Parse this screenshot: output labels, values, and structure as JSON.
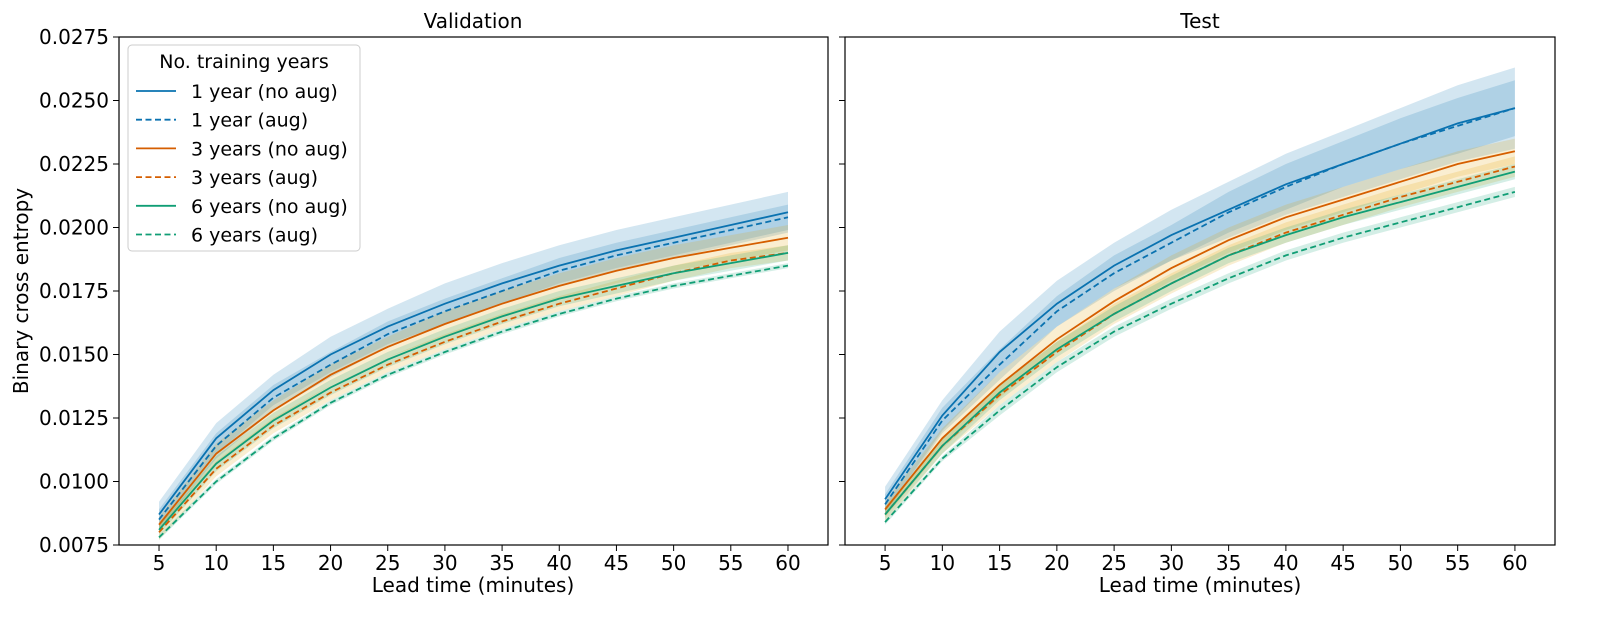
{
  "ylabel": "Binary cross entropy",
  "legend": {
    "title": "No. training years",
    "placement": "upper left (Validation panel)"
  },
  "colors": {
    "blue": "#0a72b0",
    "orange": "#d55e00",
    "green": "#109e75",
    "blue_band": "#0a72b0",
    "orange_band": "#e69f00"
  },
  "chart_data": [
    {
      "type": "line",
      "title": "Validation",
      "xlabel": "Lead time (minutes)",
      "ylabel": "Binary cross entropy",
      "xlim": [
        1.5,
        63.5
      ],
      "ylim": [
        0.0075,
        0.0275
      ],
      "x": [
        5,
        10,
        15,
        20,
        25,
        30,
        35,
        40,
        45,
        50,
        55,
        60
      ],
      "yticks": [
        "0.0075",
        "0.0100",
        "0.0125",
        "0.0150",
        "0.0175",
        "0.0200",
        "0.0225",
        "0.0250",
        "0.0275"
      ],
      "grid": false,
      "series": [
        {
          "name": "1 year (no aug)",
          "color": "blue",
          "dash": false,
          "values": [
            0.0087,
            0.0117,
            0.0136,
            0.015,
            0.0161,
            0.017,
            0.0178,
            0.0185,
            0.0191,
            0.0196,
            0.0201,
            0.0206
          ],
          "band": [
            0.0005,
            0.0006,
            0.0006,
            0.0007,
            0.0007,
            0.0008,
            0.0008,
            0.0008,
            0.0008,
            0.0008,
            0.0008,
            0.0008
          ]
        },
        {
          "name": "1 year (aug)",
          "color": "blue",
          "dash": true,
          "values": [
            0.0085,
            0.0114,
            0.0133,
            0.0146,
            0.0158,
            0.0167,
            0.0175,
            0.0183,
            0.0189,
            0.0194,
            0.0199,
            0.0204
          ],
          "band": [
            0.0004,
            0.0005,
            0.0005,
            0.0005,
            0.0005,
            0.0005,
            0.0005,
            0.0005,
            0.0005,
            0.0005,
            0.0005,
            0.0005
          ]
        },
        {
          "name": "3 years (no aug)",
          "color": "orange",
          "dash": false,
          "values": [
            0.0083,
            0.0111,
            0.0128,
            0.0142,
            0.0153,
            0.0162,
            0.017,
            0.0177,
            0.0183,
            0.0188,
            0.0192,
            0.0196
          ],
          "band": [
            0.0003,
            0.0004,
            0.0004,
            0.0004,
            0.0004,
            0.0005,
            0.0005,
            0.0005,
            0.0005,
            0.0005,
            0.0005,
            0.0005
          ]
        },
        {
          "name": "3 years (aug)",
          "color": "orange",
          "dash": true,
          "values": [
            0.008,
            0.0105,
            0.0122,
            0.0135,
            0.0146,
            0.0155,
            0.0163,
            0.017,
            0.0176,
            0.0182,
            0.0187,
            0.019
          ],
          "band": [
            0.0003,
            0.0003,
            0.0003,
            0.0003,
            0.0003,
            0.0003,
            0.0003,
            0.0003,
            0.0003,
            0.0003,
            0.0003,
            0.0003
          ]
        },
        {
          "name": "6 years (no aug)",
          "color": "green",
          "dash": false,
          "values": [
            0.0081,
            0.0107,
            0.0124,
            0.0137,
            0.0148,
            0.0157,
            0.0165,
            0.0172,
            0.0177,
            0.0182,
            0.0186,
            0.019
          ],
          "band": [
            0.0002,
            0.0003,
            0.0003,
            0.0003,
            0.0003,
            0.0003,
            0.0003,
            0.0003,
            0.0003,
            0.0003,
            0.0003,
            0.0003
          ]
        },
        {
          "name": "6 years (aug)",
          "color": "green",
          "dash": true,
          "values": [
            0.0078,
            0.01,
            0.0117,
            0.0131,
            0.0142,
            0.0151,
            0.0159,
            0.0166,
            0.0172,
            0.0177,
            0.0181,
            0.0185
          ],
          "band": [
            0.0001,
            0.0001,
            0.0001,
            0.0001,
            0.0001,
            0.0001,
            0.0001,
            0.0001,
            0.0001,
            0.0001,
            0.0001,
            0.0001
          ]
        }
      ]
    },
    {
      "type": "line",
      "title": "Test",
      "xlabel": "Lead time (minutes)",
      "ylabel": "",
      "xlim": [
        1.5,
        63.5
      ],
      "ylim": [
        0.0075,
        0.0275
      ],
      "x": [
        5,
        10,
        15,
        20,
        25,
        30,
        35,
        40,
        45,
        50,
        55,
        60
      ],
      "yticks": [
        "0.0075",
        "0.0100",
        "0.0125",
        "0.0150",
        "0.0175",
        "0.0200",
        "0.0225",
        "0.0250",
        "0.0275"
      ],
      "grid": false,
      "series": [
        {
          "name": "1 year (no aug)",
          "color": "blue",
          "dash": false,
          "values": [
            0.0093,
            0.0126,
            0.0151,
            0.017,
            0.0185,
            0.0197,
            0.0207,
            0.0217,
            0.0225,
            0.0233,
            0.0241,
            0.0247
          ],
          "band": [
            0.0005,
            0.0006,
            0.0008,
            0.0009,
            0.0009,
            0.001,
            0.0011,
            0.0012,
            0.0013,
            0.0014,
            0.0015,
            0.0016
          ]
        },
        {
          "name": "1 year (aug)",
          "color": "blue",
          "dash": true,
          "values": [
            0.0091,
            0.0124,
            0.0146,
            0.0167,
            0.0182,
            0.0194,
            0.0206,
            0.0216,
            0.0225,
            0.0233,
            0.024,
            0.0247
          ],
          "band": [
            0.0004,
            0.0005,
            0.0006,
            0.0006,
            0.0007,
            0.0007,
            0.0008,
            0.0009,
            0.0009,
            0.001,
            0.0011,
            0.0011
          ]
        },
        {
          "name": "3 years (no aug)",
          "color": "orange",
          "dash": false,
          "values": [
            0.0089,
            0.0117,
            0.0138,
            0.0156,
            0.0171,
            0.0184,
            0.0195,
            0.0204,
            0.0211,
            0.0218,
            0.0225,
            0.023
          ],
          "band": [
            0.0003,
            0.0004,
            0.0005,
            0.0005,
            0.0005,
            0.0005,
            0.0005,
            0.0005,
            0.0005,
            0.0005,
            0.0005,
            0.0005
          ]
        },
        {
          "name": "3 years (aug)",
          "color": "orange",
          "dash": true,
          "values": [
            0.0087,
            0.0114,
            0.0134,
            0.0151,
            0.0166,
            0.0178,
            0.0189,
            0.0198,
            0.0205,
            0.0212,
            0.0218,
            0.0224
          ],
          "band": [
            0.0003,
            0.0003,
            0.0004,
            0.0004,
            0.0004,
            0.0004,
            0.0004,
            0.0004,
            0.0004,
            0.0004,
            0.0004,
            0.0004
          ]
        },
        {
          "name": "6 years (no aug)",
          "color": "green",
          "dash": false,
          "values": [
            0.0087,
            0.0114,
            0.0135,
            0.0152,
            0.0166,
            0.0178,
            0.0189,
            0.0197,
            0.0204,
            0.021,
            0.0216,
            0.0222
          ],
          "band": [
            0.0002,
            0.0003,
            0.0003,
            0.0003,
            0.0003,
            0.0003,
            0.0003,
            0.0003,
            0.0003,
            0.0003,
            0.0003,
            0.0003
          ]
        },
        {
          "name": "6 years (aug)",
          "color": "green",
          "dash": true,
          "values": [
            0.0084,
            0.0109,
            0.0128,
            0.0145,
            0.0159,
            0.017,
            0.018,
            0.0189,
            0.0196,
            0.0202,
            0.0208,
            0.0214
          ],
          "band": [
            0.0001,
            0.0001,
            0.0002,
            0.0002,
            0.0002,
            0.0002,
            0.0002,
            0.0002,
            0.0002,
            0.0002,
            0.0002,
            0.0002
          ]
        }
      ]
    }
  ]
}
